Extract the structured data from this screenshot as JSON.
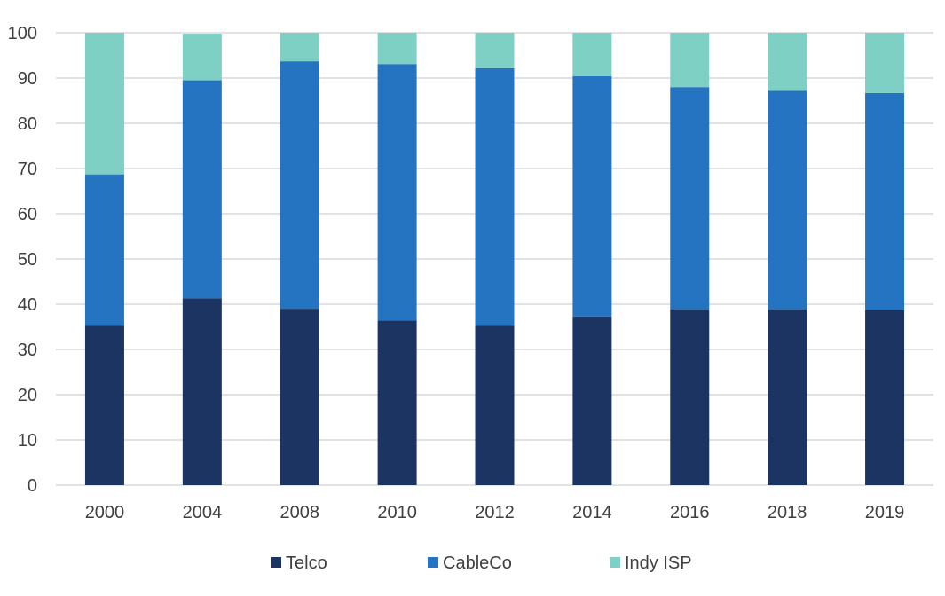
{
  "chart_data": {
    "type": "bar",
    "stacked": true,
    "title": "",
    "xlabel": "",
    "ylabel": "",
    "ylim": [
      0,
      100
    ],
    "yticks": [
      0,
      10,
      20,
      30,
      40,
      50,
      60,
      70,
      80,
      90,
      100
    ],
    "grid": true,
    "legend_position": "bottom",
    "categories": [
      "2000",
      "2004",
      "2008",
      "2010",
      "2012",
      "2014",
      "2016",
      "2018",
      "2019"
    ],
    "series": [
      {
        "name": "Telco",
        "color": "#1c3461",
        "values": [
          35.2,
          41.3,
          39.0,
          36.4,
          35.2,
          37.3,
          38.9,
          38.9,
          38.7
        ]
      },
      {
        "name": "CableCo",
        "color": "#2574c1",
        "values": [
          33.5,
          48.2,
          54.7,
          56.7,
          57.0,
          53.1,
          49.1,
          48.3,
          48.0
        ]
      },
      {
        "name": "Indy ISP",
        "color": "#7ecfc4",
        "values": [
          31.3,
          10.3,
          6.3,
          6.9,
          7.8,
          9.6,
          12.0,
          12.8,
          13.3
        ]
      }
    ]
  }
}
